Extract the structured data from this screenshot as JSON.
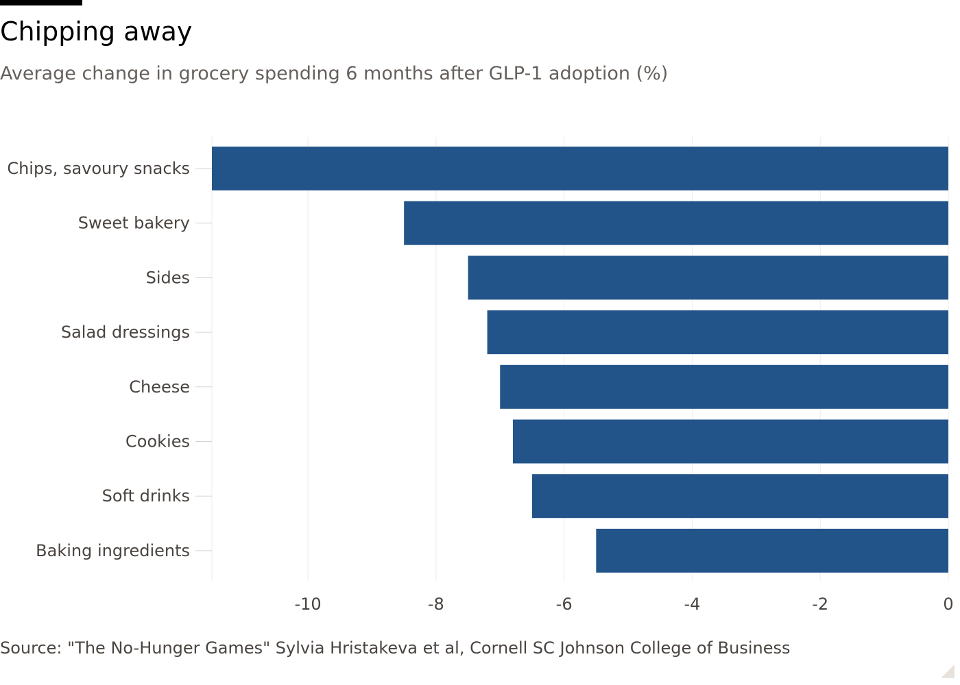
{
  "header": {
    "title": "Chipping away",
    "subtitle": "Average change in grocery spending 6 months after GLP-1 adoption (%)"
  },
  "footer": {
    "source": "Source: \"The No-Hunger Games\" Sylvia Hristakeva et al, Cornell SC Johnson College of Business"
  },
  "colors": {
    "bar": "#22548a",
    "grid": "#efebe7",
    "tick": "#d9d3cd",
    "text": "#4a4440"
  },
  "chart_data": {
    "type": "bar",
    "orientation": "horizontal",
    "categories": [
      "Chips, savoury snacks",
      "Sweet bakery",
      "Sides",
      "Salad dressings",
      "Cheese",
      "Cookies",
      "Soft drinks",
      "Baking ingredients"
    ],
    "values": [
      -11.5,
      -8.5,
      -7.5,
      -7.2,
      -7.0,
      -6.8,
      -6.5,
      -5.5
    ],
    "xlim": [
      -11.5,
      0
    ],
    "xticks": [
      -10,
      -8,
      -6,
      -4,
      -2,
      0
    ],
    "xtick_labels": [
      "-10",
      "-8",
      "-6",
      "-4",
      "-2",
      "0"
    ],
    "grid": true,
    "legend": "none"
  }
}
